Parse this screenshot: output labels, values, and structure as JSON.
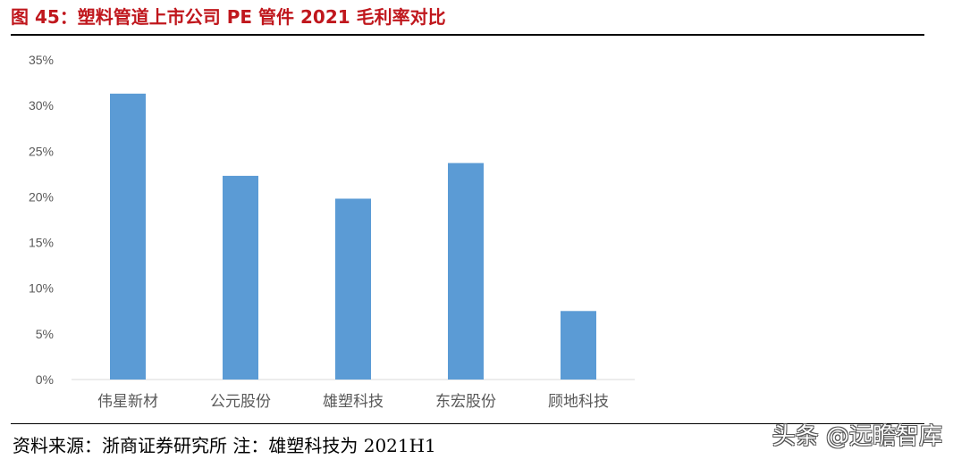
{
  "figure": {
    "title": "图 45：塑料管道上市公司 PE 管件 2021 毛利率对比",
    "source": "资料来源：浙商证券研究所 注：雄塑科技为 2021H1",
    "watermark": "头条 @远瞻智库"
  },
  "chart_data": {
    "type": "bar",
    "title": "",
    "xlabel": "",
    "ylabel": "",
    "categories": [
      "伟星新材",
      "公元股份",
      "雄塑科技",
      "东宏股份",
      "顾地科技"
    ],
    "series": [
      {
        "values": [
          31.3,
          22.3,
          19.8,
          23.7,
          7.5
        ]
      }
    ],
    "ylim": [
      0,
      35
    ],
    "yticks": [
      0,
      5,
      10,
      15,
      20,
      25,
      30,
      35
    ],
    "ytick_labels": [
      "0%",
      "5%",
      "10%",
      "15%",
      "20%",
      "25%",
      "30%",
      "35%"
    ],
    "grid": false,
    "legend": "none",
    "colors": {
      "bar": "#5b9bd5",
      "axis": "#d9d9d9",
      "tick_text": "#595959",
      "title": "#c0171d"
    }
  }
}
